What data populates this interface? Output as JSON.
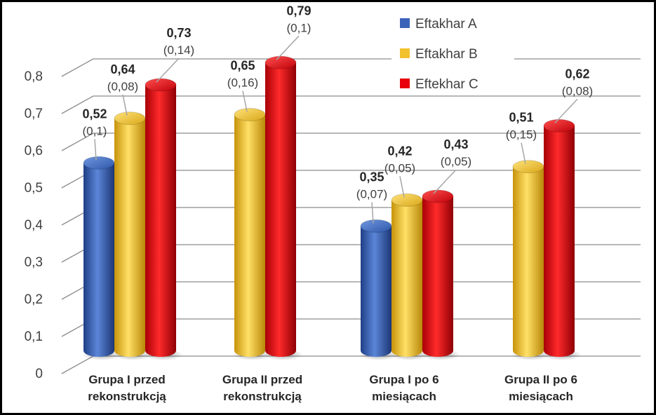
{
  "chart_data": {
    "type": "bar",
    "style": "3d-cylinder",
    "categories": [
      [
        "Grupa I przed",
        "rekonstrukcją"
      ],
      [
        "Grupa II przed",
        "rekonstrukcją"
      ],
      [
        "Grupa I po 6",
        "miesiącach"
      ],
      [
        "Grupa II po 6",
        "miesiącach"
      ]
    ],
    "series": [
      {
        "name": "Eftakhar A",
        "color": "#3a63b8",
        "values": [
          0.52,
          null,
          0.35,
          null
        ],
        "sd": [
          "(0,1)",
          null,
          "(0,07)",
          null
        ]
      },
      {
        "name": "Eftakhar B",
        "color": "#f2c12e",
        "values": [
          0.64,
          0.65,
          0.42,
          0.51
        ],
        "sd": [
          "(0,08)",
          "(0,16)",
          "(0,05)",
          "(0,15)"
        ]
      },
      {
        "name": "Eftekhar C",
        "color": "#e8000b",
        "values": [
          0.73,
          0.79,
          0.43,
          0.62
        ],
        "sd": [
          "(0,14)",
          "(0,1)",
          "(0,05)",
          "(0,08)"
        ]
      }
    ],
    "value_labels": [
      [
        "0,52",
        null,
        "0,35",
        null
      ],
      [
        "0,64",
        "0,65",
        "0,42",
        "0,51"
      ],
      [
        "0,73",
        "0,79",
        "0,43",
        "0,62"
      ]
    ],
    "yticks": [
      0,
      0.1,
      0.2,
      0.3,
      0.4,
      0.5,
      0.6,
      0.7,
      0.8
    ],
    "ytick_labels": [
      "0",
      "0,1",
      "0,2",
      "0,3",
      "0,4",
      "0,5",
      "0,6",
      "0,7",
      "0,8"
    ],
    "ylim": [
      0,
      0.8
    ],
    "grid": true,
    "legend_position": "top-right",
    "title": "",
    "xlabel": "",
    "ylabel": ""
  }
}
